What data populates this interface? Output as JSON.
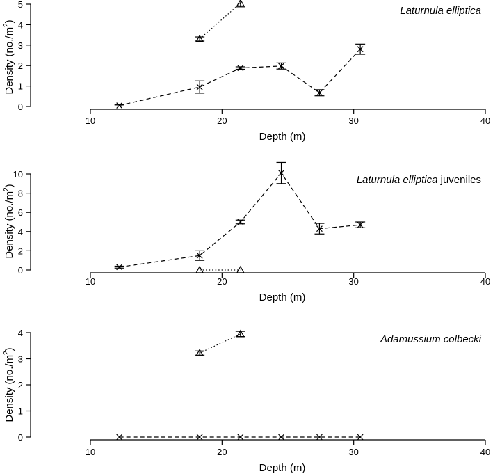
{
  "colors": {
    "ink": "#000000",
    "background": "#ffffff"
  },
  "chart_data": [
    {
      "type": "line",
      "title_italic": "Laturnula elliptica",
      "title_rest": "",
      "xlabel": "Depth (m)",
      "ylabel": "Density (no./m",
      "ylabel_sup": "2",
      "ylabel_close": ")",
      "xlim": [
        10,
        40
      ],
      "ylim": [
        0,
        5
      ],
      "xticks": [
        10,
        20,
        30,
        40
      ],
      "yticks": [
        0,
        1,
        2,
        3,
        4,
        5
      ],
      "series": [
        {
          "marker": "cross",
          "line_style": "dashed",
          "x": [
            12.2,
            18.3,
            21.4,
            24.5,
            27.4,
            30.5
          ],
          "y": [
            0.05,
            0.95,
            1.88,
            1.98,
            0.67,
            2.8
          ],
          "err": [
            0.03,
            0.3,
            0.06,
            0.15,
            0.15,
            0.25
          ]
        },
        {
          "marker": "triangle",
          "line_style": "dotted",
          "x": [
            18.3,
            21.4
          ],
          "y": [
            3.3,
            5.05
          ],
          "err": [
            0.1,
            0.18
          ]
        }
      ]
    },
    {
      "type": "line",
      "title_italic": "Laturnula elliptica",
      "title_rest": " juveniles",
      "xlabel": "Depth (m)",
      "ylabel": "Density (no./m",
      "ylabel_sup": "2",
      "ylabel_close": ")",
      "xlim": [
        10,
        40
      ],
      "ylim": [
        0,
        10
      ],
      "xticks": [
        10,
        20,
        30,
        40
      ],
      "yticks": [
        0,
        2,
        4,
        6,
        8,
        10
      ],
      "series": [
        {
          "marker": "cross",
          "line_style": "dashed",
          "x": [
            12.2,
            18.3,
            21.4,
            24.5,
            27.4,
            30.5
          ],
          "y": [
            0.3,
            1.5,
            5.0,
            10.1,
            4.3,
            4.7
          ],
          "err": [
            0.1,
            0.5,
            0.2,
            1.1,
            0.55,
            0.3
          ]
        },
        {
          "marker": "triangle",
          "line_style": "dotted",
          "x": [
            18.3,
            21.4
          ],
          "y": [
            0.0,
            0.0
          ],
          "err": [
            0,
            0
          ]
        }
      ]
    },
    {
      "type": "line",
      "title_italic": "Adamussium colbecki",
      "title_rest": "",
      "xlabel": "Depth (m)",
      "ylabel": "Density (no./m",
      "ylabel_sup": "2",
      "ylabel_close": ")",
      "xlim": [
        10,
        40
      ],
      "ylim": [
        0,
        4
      ],
      "xticks": [
        10,
        20,
        30,
        40
      ],
      "yticks": [
        0,
        1,
        2,
        3,
        4
      ],
      "series": [
        {
          "marker": "cross",
          "line_style": "dashed",
          "x": [
            12.2,
            18.3,
            21.4,
            24.5,
            27.4,
            30.5
          ],
          "y": [
            0,
            0,
            0,
            0,
            0,
            0
          ],
          "err": [
            0,
            0,
            0,
            0,
            0,
            0
          ]
        },
        {
          "marker": "triangle",
          "line_style": "dotted",
          "x": [
            18.3,
            21.4
          ],
          "y": [
            3.22,
            3.95
          ],
          "err": [
            0.08,
            0.1
          ]
        }
      ]
    }
  ]
}
